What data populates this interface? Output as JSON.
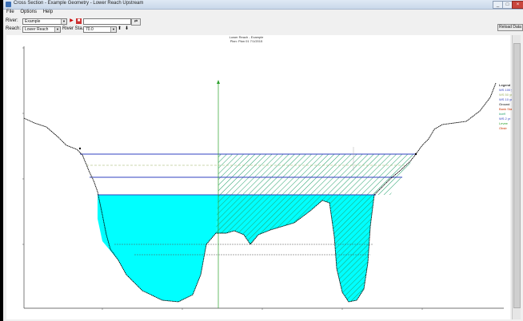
{
  "window": {
    "title": "Cross Section - Example Geometry - Lower Reach Upstream",
    "minimize": "_",
    "maximize": "□",
    "close": "×"
  },
  "menu": [
    "File",
    "Options",
    "Help"
  ],
  "toolbar": {
    "river_label": "River:",
    "river_value": "Example",
    "reach_label": "Reach:",
    "reach_value": "Lower Reach",
    "rs_label": "River Sta.:",
    "rs_value": "70.0",
    "reload_button": "Reload Data",
    "plot_button": "Plot"
  },
  "plot": {
    "header_line1": "Lower Reach - Example",
    "header_line2": "Plan: Plan 01    7/1/2015"
  },
  "legend": {
    "title": "Legend",
    "items": [
      "WS 100 yr",
      "WS 50 yr",
      "WS 10 yr",
      "Ground",
      "Bank Sta",
      "Ineff",
      "WS 2 yr",
      "Levee",
      "Obstr"
    ]
  },
  "colors": {
    "water_fill": "#00ffff",
    "hatch": "#22a06b",
    "ws_line": "#3040c0",
    "ground": "#000000",
    "bank_marker": "#ff6600"
  }
}
